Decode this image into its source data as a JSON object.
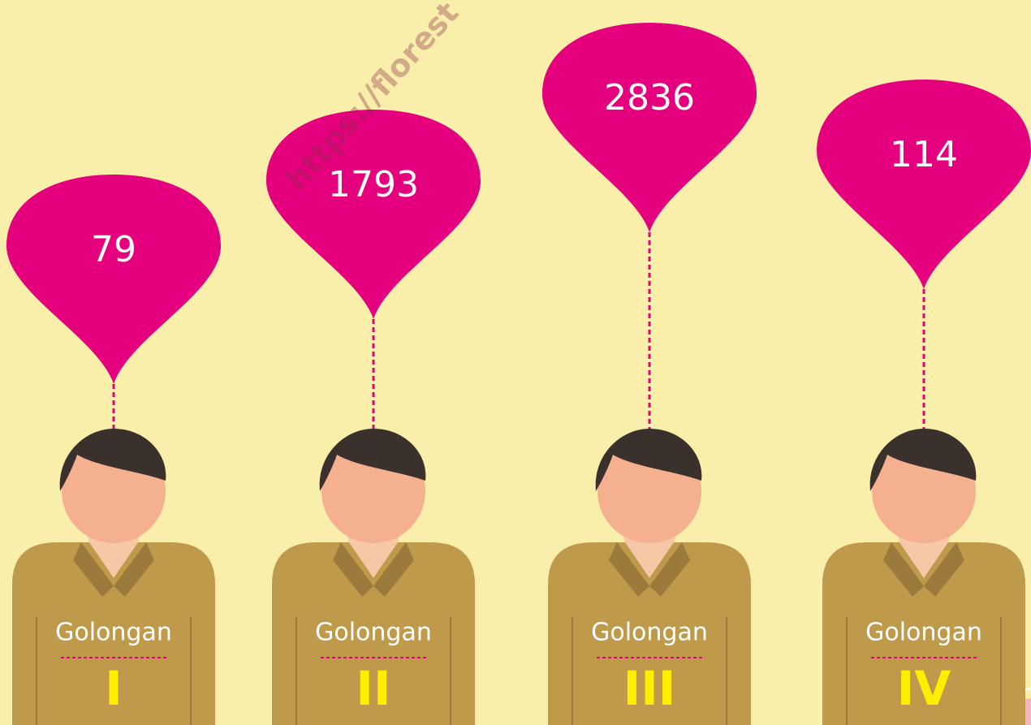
{
  "watermark": "https://florest",
  "groups": [
    {
      "value": "79",
      "label": "Golongan",
      "numeral": "I"
    },
    {
      "value": "1793",
      "label": "Golongan",
      "numeral": "II"
    },
    {
      "value": "2836",
      "label": "Golongan",
      "numeral": "III"
    },
    {
      "value": "114",
      "label": "Golongan",
      "numeral": "IV"
    }
  ]
}
